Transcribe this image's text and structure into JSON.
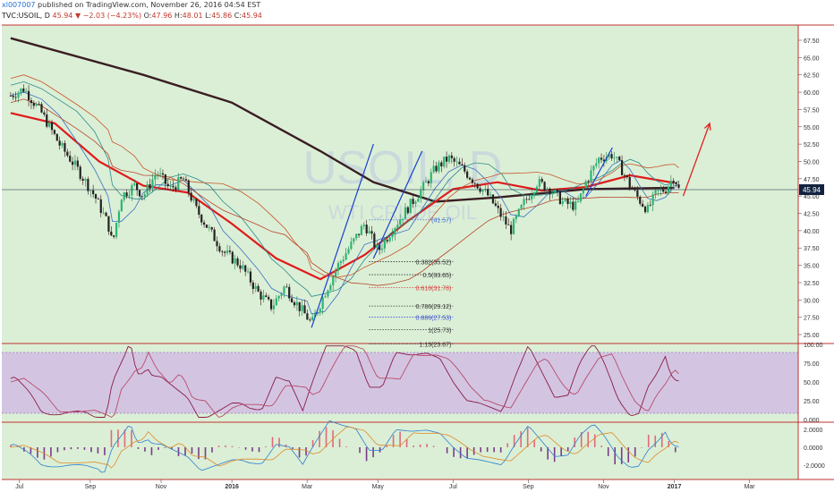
{
  "header": {
    "user": "xl007007",
    "published_text": "published on TradingView.com, November 26, 2016 04:54 EST",
    "symbol": "TVC:USOIL, D",
    "last": "45.94",
    "arrow": "▼",
    "change": "−2.03 (−4.23%)",
    "o_label": "O:",
    "o_value": "47.96",
    "h_label": "H:",
    "h_value": "48.01",
    "l_label": "L:",
    "l_value": "45.86",
    "c_label": "C:",
    "c_value": "45.94"
  },
  "watermark": {
    "symbol": "USOIL, D",
    "subtitle": "WTI CRUDE OIL"
  },
  "colors": {
    "background": "#dbefd6",
    "price_label_bg": "#13233f",
    "rsi_band": "#d3c5e1",
    "up": "#2bb673",
    "down": "#e53935"
  },
  "chart_data": {
    "type": "candlestick",
    "price_axis": {
      "ticks": [
        "67.50",
        "65.00",
        "62.50",
        "60.00",
        "57.50",
        "55.00",
        "52.50",
        "50.00",
        "47.50",
        "45.00",
        "42.50",
        "40.00",
        "37.50",
        "35.00",
        "32.50",
        "30.00",
        "27.50",
        "25.00"
      ],
      "last_price": "45.94"
    },
    "time_axis": [
      "Jul",
      "Sep",
      "Nov",
      "2016",
      "Mar",
      "May",
      "Jul",
      "Sep",
      "Nov",
      "2017",
      "Mar"
    ],
    "price_path": [
      [
        2015.5,
        59.5
      ],
      [
        2015.53,
        60.5
      ],
      [
        2015.57,
        57.0
      ],
      [
        2015.61,
        52.5
      ],
      [
        2015.65,
        49.0
      ],
      [
        2015.69,
        45.0
      ],
      [
        2015.72,
        41.0
      ],
      [
        2015.73,
        38.0
      ],
      [
        2015.75,
        45.0
      ],
      [
        2015.78,
        46.5
      ],
      [
        2015.8,
        45.0
      ],
      [
        2015.83,
        48.5
      ],
      [
        2015.86,
        46.0
      ],
      [
        2015.89,
        47.5
      ],
      [
        2015.92,
        43.0
      ],
      [
        2015.95,
        40.0
      ],
      [
        2015.98,
        37.0
      ],
      [
        2016.02,
        35.0
      ],
      [
        2016.06,
        31.0
      ],
      [
        2016.09,
        29.0
      ],
      [
        2016.12,
        32.0
      ],
      [
        2016.14,
        30.0
      ],
      [
        2016.17,
        27.5
      ],
      [
        2016.18,
        26.5
      ],
      [
        2016.21,
        31.0
      ],
      [
        2016.24,
        35.0
      ],
      [
        2016.27,
        38.0
      ],
      [
        2016.3,
        41.0
      ],
      [
        2016.33,
        37.0
      ],
      [
        2016.36,
        40.0
      ],
      [
        2016.4,
        43.5
      ],
      [
        2016.43,
        46.0
      ],
      [
        2016.46,
        49.0
      ],
      [
        2016.49,
        50.5
      ],
      [
        2016.52,
        49.0
      ],
      [
        2016.55,
        47.0
      ],
      [
        2016.58,
        45.0
      ],
      [
        2016.61,
        42.0
      ],
      [
        2016.63,
        40.0
      ],
      [
        2016.66,
        44.0
      ],
      [
        2016.69,
        47.0
      ],
      [
        2016.72,
        46.0
      ],
      [
        2016.75,
        44.0
      ],
      [
        2016.78,
        43.5
      ],
      [
        2016.8,
        47.0
      ],
      [
        2016.83,
        50.5
      ],
      [
        2016.86,
        51.0
      ],
      [
        2016.88,
        49.0
      ],
      [
        2016.9,
        46.5
      ],
      [
        2016.92,
        44.5
      ],
      [
        2016.94,
        43.0
      ],
      [
        2016.96,
        45.5
      ],
      [
        2016.98,
        46.0
      ],
      [
        2017.0,
        47.9
      ],
      [
        2017.01,
        45.94
      ]
    ],
    "moving_averages": [
      {
        "name": "MA 200",
        "color": "#3a1e22",
        "points": [
          [
            2015.5,
            67.8
          ],
          [
            2015.8,
            62.5
          ],
          [
            2016.0,
            58.5
          ],
          [
            2016.2,
            51.5
          ],
          [
            2016.32,
            47.0
          ],
          [
            2016.46,
            44.2
          ],
          [
            2016.6,
            44.8
          ],
          [
            2016.8,
            46.0
          ],
          [
            2017.0,
            46.2
          ]
        ]
      },
      {
        "name": "MA 50",
        "color": "#e01b1b",
        "points": [
          [
            2015.5,
            57.0
          ],
          [
            2015.6,
            55.5
          ],
          [
            2015.7,
            50.0
          ],
          [
            2015.8,
            46.5
          ],
          [
            2015.9,
            45.5
          ],
          [
            2016.0,
            41.0
          ],
          [
            2016.1,
            36.0
          ],
          [
            2016.2,
            33.0
          ],
          [
            2016.3,
            36.5
          ],
          [
            2016.4,
            41.5
          ],
          [
            2016.5,
            46.0
          ],
          [
            2016.6,
            47.0
          ],
          [
            2016.7,
            45.8
          ],
          [
            2016.8,
            46.3
          ],
          [
            2016.9,
            48.0
          ],
          [
            2017.0,
            46.9
          ]
        ]
      }
    ],
    "arrow_projection": {
      "from": [
        2017.02,
        45.0
      ],
      "to": [
        2017.08,
        55.5
      ]
    },
    "trendlines": [
      {
        "from": [
          2016.18,
          26.0
        ],
        "to": [
          2016.32,
          52.5
        ]
      },
      {
        "from": [
          2016.32,
          36.0
        ],
        "to": [
          2016.43,
          51.5
        ]
      },
      {
        "from": [
          2016.8,
          45.0
        ],
        "to": [
          2016.86,
          52.0
        ]
      }
    ],
    "fibonacci": {
      "from": [
        2016.31,
        23.67
      ],
      "to": [
        2016.5,
        41.57
      ],
      "levels": [
        {
          "label": "(41.57)",
          "price": 41.57,
          "color": "#4a6fd0"
        },
        {
          "label": "0.382(35.52)",
          "price": 35.52,
          "color": "#333333"
        },
        {
          "label": "0.5(33.65)",
          "price": 33.65,
          "color": "#333333"
        },
        {
          "label": "0.618(31.78)",
          "price": 31.78,
          "color": "#d23b3b"
        },
        {
          "label": "0.786(29.12)",
          "price": 29.12,
          "color": "#333333"
        },
        {
          "label": "0.886(27.53)",
          "price": 27.53,
          "color": "#3f4fd0"
        },
        {
          "label": "1(25.73)",
          "price": 25.73,
          "color": "#333333"
        },
        {
          "label": "1.13(23.67)",
          "price": 23.67,
          "color": "#333333"
        }
      ]
    },
    "rsi": {
      "ticks": [
        "100.00",
        "75.00",
        "50.00",
        "25.00",
        "0.000"
      ],
      "band_upper": 92,
      "band_lower": 8
    },
    "macd": {
      "ticks": [
        "2.0000",
        "0.0000",
        "-2.0000"
      ]
    }
  }
}
